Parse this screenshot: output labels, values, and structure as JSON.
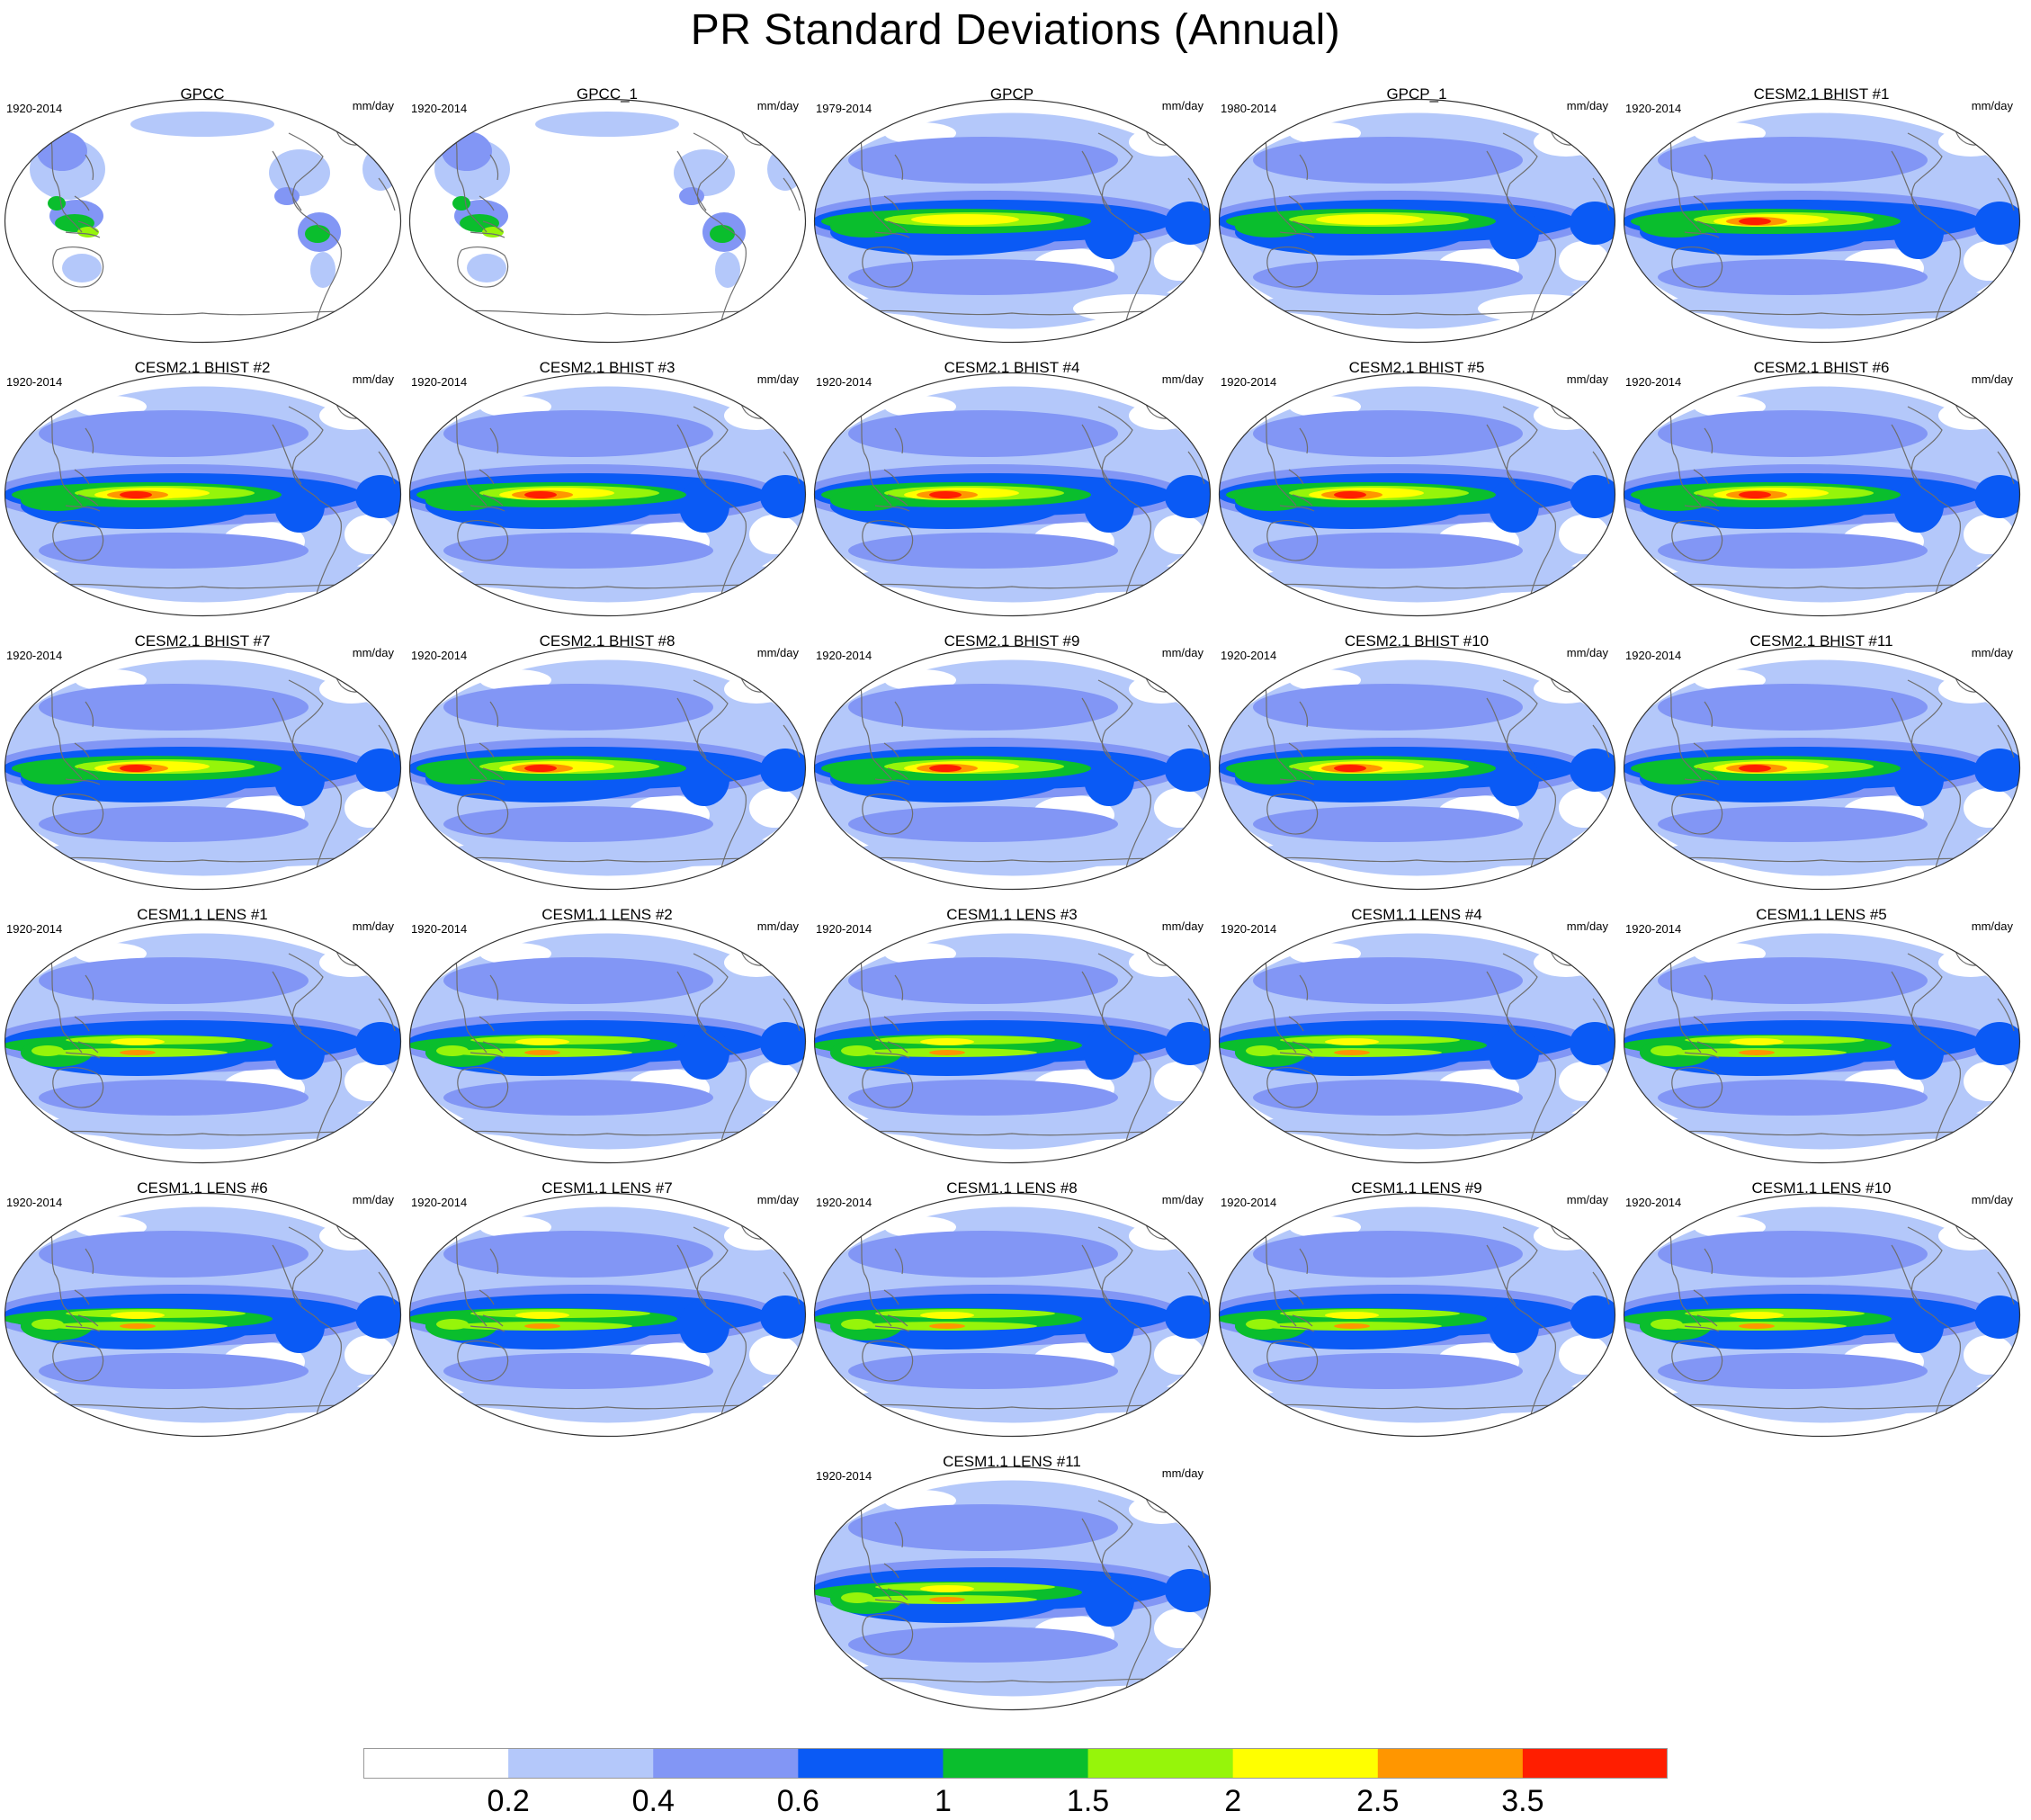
{
  "figure": {
    "title": "PR Standard Deviations (Annual)"
  },
  "panels": [
    {
      "title": "GPCC",
      "years": "1920-2014",
      "units": "mm/day",
      "style": "land"
    },
    {
      "title": "GPCC_1",
      "years": "1920-2014",
      "units": "mm/day",
      "style": "land"
    },
    {
      "title": "GPCP",
      "years": "1979-2014",
      "units": "mm/day",
      "style": "obs"
    },
    {
      "title": "GPCP_1",
      "years": "1980-2014",
      "units": "mm/day",
      "style": "obs"
    },
    {
      "title": "CESM2.1 BHIST #1",
      "years": "1920-2014",
      "units": "mm/day",
      "style": "cesm2"
    },
    {
      "title": "CESM2.1 BHIST #2",
      "years": "1920-2014",
      "units": "mm/day",
      "style": "cesm2"
    },
    {
      "title": "CESM2.1 BHIST #3",
      "years": "1920-2014",
      "units": "mm/day",
      "style": "cesm2"
    },
    {
      "title": "CESM2.1 BHIST #4",
      "years": "1920-2014",
      "units": "mm/day",
      "style": "cesm2"
    },
    {
      "title": "CESM2.1 BHIST #5",
      "years": "1920-2014",
      "units": "mm/day",
      "style": "cesm2"
    },
    {
      "title": "CESM2.1 BHIST #6",
      "years": "1920-2014",
      "units": "mm/day",
      "style": "cesm2"
    },
    {
      "title": "CESM2.1 BHIST #7",
      "years": "1920-2014",
      "units": "mm/day",
      "style": "cesm2"
    },
    {
      "title": "CESM2.1 BHIST #8",
      "years": "1920-2014",
      "units": "mm/day",
      "style": "cesm2"
    },
    {
      "title": "CESM2.1 BHIST #9",
      "years": "1920-2014",
      "units": "mm/day",
      "style": "cesm2"
    },
    {
      "title": "CESM2.1 BHIST #10",
      "years": "1920-2014",
      "units": "mm/day",
      "style": "cesm2"
    },
    {
      "title": "CESM2.1 BHIST #11",
      "years": "1920-2014",
      "units": "mm/day",
      "style": "cesm2"
    },
    {
      "title": "CESM1.1 LENS #1",
      "years": "1920-2014",
      "units": "mm/day",
      "style": "cesm1"
    },
    {
      "title": "CESM1.1 LENS #2",
      "years": "1920-2014",
      "units": "mm/day",
      "style": "cesm1"
    },
    {
      "title": "CESM1.1 LENS #3",
      "years": "1920-2014",
      "units": "mm/day",
      "style": "cesm1"
    },
    {
      "title": "CESM1.1 LENS #4",
      "years": "1920-2014",
      "units": "mm/day",
      "style": "cesm1"
    },
    {
      "title": "CESM1.1 LENS #5",
      "years": "1920-2014",
      "units": "mm/day",
      "style": "cesm1"
    },
    {
      "title": "CESM1.1 LENS #6",
      "years": "1920-2014",
      "units": "mm/day",
      "style": "cesm1"
    },
    {
      "title": "CESM1.1 LENS #7",
      "years": "1920-2014",
      "units": "mm/day",
      "style": "cesm1"
    },
    {
      "title": "CESM1.1 LENS #8",
      "years": "1920-2014",
      "units": "mm/day",
      "style": "cesm1"
    },
    {
      "title": "CESM1.1 LENS #9",
      "years": "1920-2014",
      "units": "mm/day",
      "style": "cesm1"
    },
    {
      "title": "CESM1.1 LENS #10",
      "years": "1920-2014",
      "units": "mm/day",
      "style": "cesm1"
    },
    {
      "title": "CESM1.1 LENS #11",
      "years": "1920-2014",
      "units": "mm/day",
      "style": "cesm1"
    }
  ],
  "colorbar": {
    "colors": [
      "#ffffff",
      "#b4c8fa",
      "#8296f5",
      "#0a5af5",
      "#0abe2d",
      "#96f50a",
      "#ffff00",
      "#ff9600",
      "#ff1e00"
    ],
    "labels": [
      "0.2",
      "0.4",
      "0.6",
      "1",
      "1.5",
      "2",
      "2.5",
      "3.5"
    ]
  }
}
